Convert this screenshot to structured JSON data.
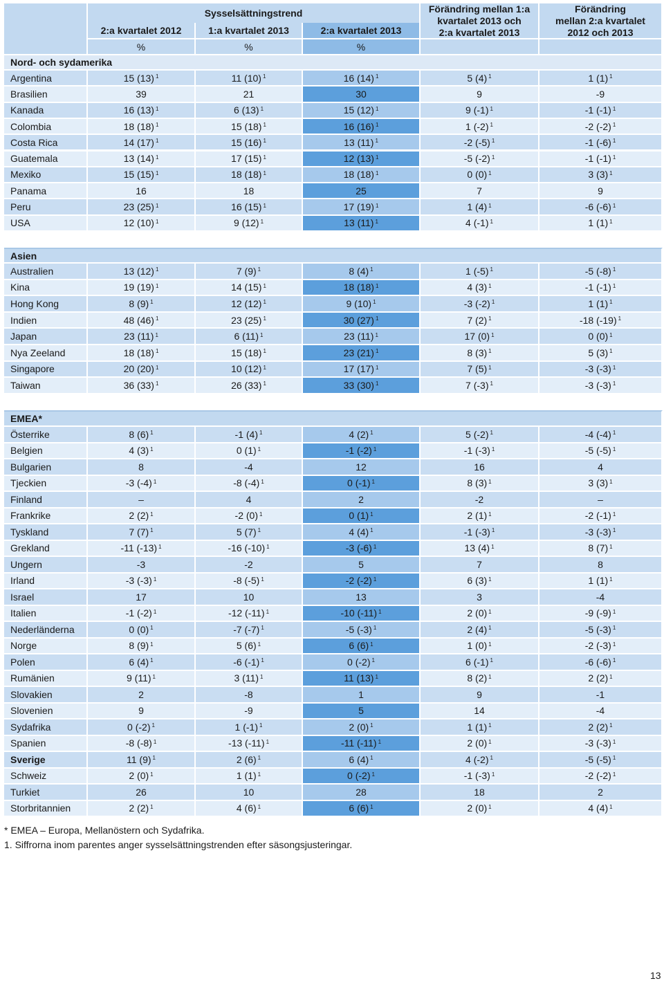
{
  "header": {
    "group": "Sysselsättningstrend",
    "columns": [
      "2:a kvartalet 2012",
      "1:a kvartalet 2013",
      "2:a kvartalet 2013"
    ],
    "change1": [
      "Förändring mellan 1:a",
      "kvartalet 2013 och",
      "2:a kvartalet 2013"
    ],
    "change2": [
      "Förändring",
      "mellan 2:a kvartalet",
      "2012 och 2013"
    ],
    "units": [
      "%",
      "%",
      "%"
    ]
  },
  "sections": [
    {
      "title": "Nord- och sydamerika",
      "rows": [
        {
          "country": "Argentina",
          "cells": [
            [
              "15 (13)",
              "1"
            ],
            [
              "11 (10)",
              "1"
            ],
            [
              "16 (14)",
              "1"
            ],
            [
              "5 (4)",
              "1"
            ],
            [
              "1 (1)",
              "1"
            ]
          ]
        },
        {
          "country": "Brasilien",
          "cells": [
            [
              "39"
            ],
            [
              "21"
            ],
            [
              "30"
            ],
            [
              "9"
            ],
            [
              "-9"
            ]
          ]
        },
        {
          "country": "Kanada",
          "cells": [
            [
              "16 (13)",
              "1"
            ],
            [
              "6 (13)",
              "1"
            ],
            [
              "15 (12)",
              "1"
            ],
            [
              "9 (-1)",
              "1"
            ],
            [
              "-1 (-1)",
              "1"
            ]
          ]
        },
        {
          "country": "Colombia",
          "cells": [
            [
              "18 (18)",
              "1"
            ],
            [
              "15 (18)",
              "1"
            ],
            [
              "16 (16)",
              "1"
            ],
            [
              "1 (-2)",
              "1"
            ],
            [
              "-2 (-2)",
              "1"
            ]
          ]
        },
        {
          "country": "Costa Rica",
          "cells": [
            [
              "14 (17)",
              "1"
            ],
            [
              "15 (16)",
              "1"
            ],
            [
              "13 (11)",
              "1"
            ],
            [
              "-2 (-5)",
              "1"
            ],
            [
              "-1 (-6)",
              "1"
            ]
          ]
        },
        {
          "country": "Guatemala",
          "cells": [
            [
              "13 (14)",
              "1"
            ],
            [
              "17 (15)",
              "1"
            ],
            [
              "12 (13)",
              "1"
            ],
            [
              "-5 (-2)",
              "1"
            ],
            [
              "-1 (-1)",
              "1"
            ]
          ]
        },
        {
          "country": "Mexiko",
          "cells": [
            [
              "15 (15)",
              "1"
            ],
            [
              "18 (18)",
              "1"
            ],
            [
              "18 (18)",
              "1"
            ],
            [
              "0 (0)",
              "1"
            ],
            [
              "3 (3)",
              "1"
            ]
          ]
        },
        {
          "country": "Panama",
          "cells": [
            [
              "16"
            ],
            [
              "18"
            ],
            [
              "25"
            ],
            [
              "7"
            ],
            [
              "9"
            ]
          ]
        },
        {
          "country": "Peru",
          "cells": [
            [
              "23 (25)",
              "1"
            ],
            [
              "16 (15)",
              "1"
            ],
            [
              "17 (19)",
              "1"
            ],
            [
              "1 (4)",
              "1"
            ],
            [
              "-6 (-6)",
              "1"
            ]
          ]
        },
        {
          "country": "USA",
          "cells": [
            [
              "12 (10)",
              "1"
            ],
            [
              "9 (12)",
              "1"
            ],
            [
              "13 (11)",
              "1"
            ],
            [
              "4 (-1)",
              "1"
            ],
            [
              "1 (1)",
              "1"
            ]
          ]
        }
      ]
    },
    {
      "title": "Asien",
      "rows": [
        {
          "country": "Australien",
          "cells": [
            [
              "13 (12)",
              "1"
            ],
            [
              "7 (9)",
              "1"
            ],
            [
              "8 (4)",
              "1"
            ],
            [
              "1 (-5)",
              "1"
            ],
            [
              "-5 (-8)",
              "1"
            ]
          ]
        },
        {
          "country": "Kina",
          "cells": [
            [
              "19 (19)",
              "1"
            ],
            [
              "14 (15)",
              "1"
            ],
            [
              "18 (18)",
              "1"
            ],
            [
              "4 (3)",
              "1"
            ],
            [
              "-1 (-1)",
              "1"
            ]
          ]
        },
        {
          "country": "Hong Kong",
          "cells": [
            [
              "8 (9)",
              "1"
            ],
            [
              "12 (12)",
              "1"
            ],
            [
              "9 (10)",
              "1"
            ],
            [
              "-3 (-2)",
              "1"
            ],
            [
              "1 (1)",
              "1"
            ]
          ]
        },
        {
          "country": "Indien",
          "cells": [
            [
              "48 (46)",
              "1"
            ],
            [
              "23 (25)",
              "1"
            ],
            [
              "30 (27)",
              "1"
            ],
            [
              "7 (2)",
              "1"
            ],
            [
              "-18 (-19)",
              "1"
            ]
          ]
        },
        {
          "country": "Japan",
          "cells": [
            [
              "23 (11)",
              "1"
            ],
            [
              "6 (11)",
              "1"
            ],
            [
              "23 (11)",
              "1"
            ],
            [
              "17 (0)",
              "1"
            ],
            [
              "0 (0)",
              "1"
            ]
          ]
        },
        {
          "country": "Nya Zeeland",
          "cells": [
            [
              "18 (18)",
              "1"
            ],
            [
              "15 (18)",
              "1"
            ],
            [
              "23 (21)",
              "1"
            ],
            [
              "8 (3)",
              "1"
            ],
            [
              "5 (3)",
              "1"
            ]
          ]
        },
        {
          "country": "Singapore",
          "cells": [
            [
              "20 (20)",
              "1"
            ],
            [
              "10 (12)",
              "1"
            ],
            [
              "17 (17)",
              "1"
            ],
            [
              "7 (5)",
              "1"
            ],
            [
              "-3 (-3)",
              "1"
            ]
          ]
        },
        {
          "country": "Taiwan",
          "cells": [
            [
              "36 (33)",
              "1"
            ],
            [
              "26 (33)",
              "1"
            ],
            [
              "33 (30)",
              "1"
            ],
            [
              "7 (-3)",
              "1"
            ],
            [
              "-3 (-3)",
              "1"
            ]
          ]
        }
      ]
    },
    {
      "title": "EMEA*",
      "rows": [
        {
          "country": "Österrike",
          "cells": [
            [
              "8 (6)",
              "1"
            ],
            [
              "-1 (4)",
              "1"
            ],
            [
              "4 (2)",
              "1"
            ],
            [
              "5 (-2)",
              "1"
            ],
            [
              "-4 (-4)",
              "1"
            ]
          ]
        },
        {
          "country": "Belgien",
          "cells": [
            [
              "4 (3)",
              "1"
            ],
            [
              "0 (1)",
              "1"
            ],
            [
              "-1 (-2)",
              "1"
            ],
            [
              "-1 (-3)",
              "1"
            ],
            [
              "-5 (-5)",
              "1"
            ]
          ]
        },
        {
          "country": "Bulgarien",
          "cells": [
            [
              "8"
            ],
            [
              "-4"
            ],
            [
              "12"
            ],
            [
              "16"
            ],
            [
              "4"
            ]
          ]
        },
        {
          "country": "Tjeckien",
          "cells": [
            [
              "-3 (-4)",
              "1"
            ],
            [
              "-8 (-4)",
              "1"
            ],
            [
              "0 (-1)",
              "1"
            ],
            [
              "8 (3)",
              "1"
            ],
            [
              "3 (3)",
              "1"
            ]
          ]
        },
        {
          "country": "Finland",
          "cells": [
            [
              "–"
            ],
            [
              "4"
            ],
            [
              "2"
            ],
            [
              "-2"
            ],
            [
              "–"
            ]
          ]
        },
        {
          "country": "Frankrike",
          "cells": [
            [
              "2 (2)",
              "1"
            ],
            [
              "-2 (0)",
              "1"
            ],
            [
              "0 (1)",
              "1"
            ],
            [
              "2 (1)",
              "1"
            ],
            [
              "-2 (-1)",
              "1"
            ]
          ]
        },
        {
          "country": "Tyskland",
          "cells": [
            [
              "7 (7)",
              "1"
            ],
            [
              "5 (7)",
              "1"
            ],
            [
              "4 (4)",
              "1"
            ],
            [
              "-1 (-3)",
              "1"
            ],
            [
              "-3 (-3)",
              "1"
            ]
          ]
        },
        {
          "country": "Grekland",
          "cells": [
            [
              "-11 (-13)",
              "1"
            ],
            [
              "-16 (-10)",
              "1"
            ],
            [
              "-3 (-6)",
              "1"
            ],
            [
              "13 (4)",
              "1"
            ],
            [
              "8 (7)",
              "1"
            ]
          ]
        },
        {
          "country": "Ungern",
          "cells": [
            [
              "-3"
            ],
            [
              "-2"
            ],
            [
              "5"
            ],
            [
              "7"
            ],
            [
              "8"
            ]
          ]
        },
        {
          "country": "Irland",
          "cells": [
            [
              "-3 (-3)",
              "1"
            ],
            [
              "-8 (-5)",
              "1"
            ],
            [
              "-2 (-2)",
              "1"
            ],
            [
              "6 (3)",
              "1"
            ],
            [
              "1 (1)",
              "1"
            ]
          ]
        },
        {
          "country": "Israel",
          "cells": [
            [
              "17"
            ],
            [
              "10"
            ],
            [
              "13"
            ],
            [
              "3"
            ],
            [
              "-4"
            ]
          ]
        },
        {
          "country": "Italien",
          "cells": [
            [
              "-1 (-2)",
              "1"
            ],
            [
              "-12 (-11)",
              "1"
            ],
            [
              "-10 (-11)",
              "1"
            ],
            [
              "2 (0)",
              "1"
            ],
            [
              "-9 (-9)",
              "1"
            ]
          ]
        },
        {
          "country": "Nederländerna",
          "cells": [
            [
              "0 (0)",
              "1"
            ],
            [
              "-7 (-7)",
              "1"
            ],
            [
              "-5 (-3)",
              "1"
            ],
            [
              "2 (4)",
              "1"
            ],
            [
              "-5 (-3)",
              "1"
            ]
          ]
        },
        {
          "country": "Norge",
          "cells": [
            [
              "8 (9)",
              "1"
            ],
            [
              "5 (6)",
              "1"
            ],
            [
              "6 (6)",
              "1"
            ],
            [
              "1 (0)",
              "1"
            ],
            [
              "-2 (-3)",
              "1"
            ]
          ]
        },
        {
          "country": "Polen",
          "cells": [
            [
              "6 (4)",
              "1"
            ],
            [
              "-6 (-1)",
              "1"
            ],
            [
              "0 (-2)",
              "1"
            ],
            [
              "6 (-1)",
              "1"
            ],
            [
              "-6 (-6)",
              "1"
            ]
          ]
        },
        {
          "country": "Rumänien",
          "cells": [
            [
              "9 (11)",
              "1"
            ],
            [
              "3 (11)",
              "1"
            ],
            [
              "11 (13)",
              "1"
            ],
            [
              "8 (2)",
              "1"
            ],
            [
              "2 (2)",
              "1"
            ]
          ]
        },
        {
          "country": "Slovakien",
          "cells": [
            [
              "2"
            ],
            [
              "-8"
            ],
            [
              "1"
            ],
            [
              "9"
            ],
            [
              "-1"
            ]
          ]
        },
        {
          "country": "Slovenien",
          "cells": [
            [
              "9"
            ],
            [
              "-9"
            ],
            [
              "5"
            ],
            [
              "14"
            ],
            [
              "-4"
            ]
          ]
        },
        {
          "country": "Sydafrika",
          "cells": [
            [
              "0 (-2)",
              "1"
            ],
            [
              "1 (-1)",
              "1"
            ],
            [
              "2 (0)",
              "1"
            ],
            [
              "1 (1)",
              "1"
            ],
            [
              "2 (2)",
              "1"
            ]
          ]
        },
        {
          "country": "Spanien",
          "cells": [
            [
              "-8 (-8)",
              "1"
            ],
            [
              "-13 (-11)",
              "1"
            ],
            [
              "-11 (-11)",
              "1"
            ],
            [
              "2 (0)",
              "1"
            ],
            [
              "-3 (-3)",
              "1"
            ]
          ]
        },
        {
          "country": "Sverige",
          "bold": true,
          "cells": [
            [
              "11 (9)",
              "1"
            ],
            [
              "2 (6)",
              "1"
            ],
            [
              "6 (4)",
              "1"
            ],
            [
              "4 (-2)",
              "1"
            ],
            [
              "-5 (-5)",
              "1"
            ]
          ]
        },
        {
          "country": "Schweiz",
          "cells": [
            [
              "2 (0)",
              "1"
            ],
            [
              "1 (1)",
              "1"
            ],
            [
              "0 (-2)",
              "1"
            ],
            [
              "-1 (-3)",
              "1"
            ],
            [
              "-2 (-2)",
              "1"
            ]
          ]
        },
        {
          "country": "Turkiet",
          "cells": [
            [
              "26"
            ],
            [
              "10"
            ],
            [
              "28"
            ],
            [
              "18"
            ],
            [
              "2"
            ]
          ]
        },
        {
          "country": "Storbritannien",
          "cells": [
            [
              "2 (2)",
              "1"
            ],
            [
              "4 (6)",
              "1"
            ],
            [
              "6 (6)",
              "1"
            ],
            [
              "2 (0)",
              "1"
            ],
            [
              "4 (4)",
              "1"
            ]
          ]
        }
      ]
    }
  ],
  "footnotes": [
    "* EMEA – Europa, Mellanöstern och Sydafrika.",
    "1. Siffrorna inom parentes anger sysselsättningstrenden efter säsongsjusteringar."
  ],
  "page_number": "13"
}
